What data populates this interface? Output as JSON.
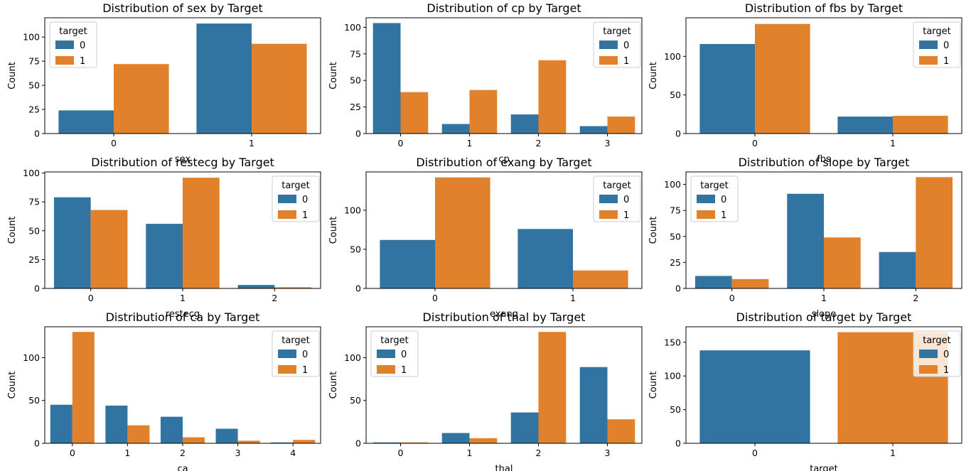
{
  "colors": {
    "class_0": "#3274a1",
    "class_1": "#e1812c"
  },
  "chart_data": [
    {
      "type": "bar",
      "title": "Distribution of sex by Target",
      "xlabel": "sex",
      "ylabel": "Count",
      "categories": [
        "0",
        "1"
      ],
      "ylim": [
        0,
        120
      ],
      "yticks": [
        0,
        25,
        50,
        75,
        100
      ],
      "legend": {
        "title": "target",
        "placement": "top-left",
        "entries": [
          "0",
          "1"
        ]
      },
      "series": [
        {
          "name": "0",
          "values": [
            24,
            114
          ]
        },
        {
          "name": "1",
          "values": [
            72,
            93
          ]
        }
      ]
    },
    {
      "type": "bar",
      "title": "Distribution of cp by Target",
      "xlabel": "cp",
      "ylabel": "Count",
      "categories": [
        "0",
        "1",
        "2",
        "3"
      ],
      "ylim": [
        0,
        109
      ],
      "yticks": [
        0,
        25,
        50,
        75,
        100
      ],
      "legend": {
        "title": "target",
        "placement": "top-right",
        "entries": [
          "0",
          "1"
        ]
      },
      "series": [
        {
          "name": "0",
          "values": [
            104,
            9,
            18,
            7
          ]
        },
        {
          "name": "1",
          "values": [
            39,
            41,
            69,
            16
          ]
        }
      ]
    },
    {
      "type": "bar",
      "title": "Distribution of fbs by Target",
      "xlabel": "fbs",
      "ylabel": "Count",
      "categories": [
        "0",
        "1"
      ],
      "ylim": [
        0,
        150
      ],
      "yticks": [
        0,
        50,
        100
      ],
      "legend": {
        "title": "target",
        "placement": "top-right",
        "entries": [
          "0",
          "1"
        ]
      },
      "series": [
        {
          "name": "0",
          "values": [
            116,
            22
          ]
        },
        {
          "name": "1",
          "values": [
            142,
            23
          ]
        }
      ]
    },
    {
      "type": "bar",
      "title": "Distribution of restecg by Target",
      "xlabel": "restecg",
      "ylabel": "Count",
      "categories": [
        "0",
        "1",
        "2"
      ],
      "ylim": [
        0,
        101
      ],
      "yticks": [
        0,
        25,
        50,
        75,
        100
      ],
      "legend": {
        "title": "target",
        "placement": "top-right",
        "entries": [
          "0",
          "1"
        ]
      },
      "series": [
        {
          "name": "0",
          "values": [
            79,
            56,
            3
          ]
        },
        {
          "name": "1",
          "values": [
            68,
            96,
            1
          ]
        }
      ]
    },
    {
      "type": "bar",
      "title": "Distribution of exang by Target",
      "xlabel": "exang",
      "ylabel": "Count",
      "categories": [
        "0",
        "1"
      ],
      "ylim": [
        0,
        149
      ],
      "yticks": [
        0,
        50,
        100
      ],
      "legend": {
        "title": "target",
        "placement": "top-right",
        "entries": [
          "0",
          "1"
        ]
      },
      "series": [
        {
          "name": "0",
          "values": [
            62,
            76
          ]
        },
        {
          "name": "1",
          "values": [
            142,
            23
          ]
        }
      ]
    },
    {
      "type": "bar",
      "title": "Distribution of slope by Target",
      "xlabel": "slope",
      "ylabel": "Count",
      "categories": [
        "0",
        "1",
        "2"
      ],
      "ylim": [
        0,
        112
      ],
      "yticks": [
        0,
        25,
        50,
        75,
        100
      ],
      "legend": {
        "title": "target",
        "placement": "top-left",
        "entries": [
          "0",
          "1"
        ]
      },
      "series": [
        {
          "name": "0",
          "values": [
            12,
            91,
            35
          ]
        },
        {
          "name": "1",
          "values": [
            9,
            49,
            107
          ]
        }
      ]
    },
    {
      "type": "bar",
      "title": "Distribution of ca by Target",
      "xlabel": "ca",
      "ylabel": "Count",
      "categories": [
        "0",
        "1",
        "2",
        "3",
        "4"
      ],
      "ylim": [
        0,
        136
      ],
      "yticks": [
        0,
        50,
        100
      ],
      "legend": {
        "title": "target",
        "placement": "top-right",
        "entries": [
          "0",
          "1"
        ]
      },
      "series": [
        {
          "name": "0",
          "values": [
            45,
            44,
            31,
            17,
            1
          ]
        },
        {
          "name": "1",
          "values": [
            130,
            21,
            7,
            3,
            4
          ]
        }
      ]
    },
    {
      "type": "bar",
      "title": "Distribution of thal by Target",
      "xlabel": "thal",
      "ylabel": "Count",
      "categories": [
        "0",
        "1",
        "2",
        "3"
      ],
      "ylim": [
        0,
        136
      ],
      "yticks": [
        0,
        50,
        100
      ],
      "legend": {
        "title": "target",
        "placement": "top-left",
        "entries": [
          "0",
          "1"
        ]
      },
      "series": [
        {
          "name": "0",
          "values": [
            1,
            12,
            36,
            89
          ]
        },
        {
          "name": "1",
          "values": [
            1,
            6,
            130,
            28
          ]
        }
      ]
    },
    {
      "type": "bar",
      "title": "Distribution of target by Target",
      "xlabel": "target",
      "ylabel": "Count",
      "categories": [
        "0",
        "1"
      ],
      "ylim": [
        0,
        173
      ],
      "yticks": [
        0,
        50,
        100,
        150
      ],
      "dodge": false,
      "legend": {
        "title": "target",
        "placement": "top-right",
        "entries": [
          "0",
          "1"
        ]
      },
      "series": [
        {
          "name": "0",
          "values": [
            138,
            0
          ]
        },
        {
          "name": "1",
          "values": [
            0,
            165
          ]
        }
      ]
    }
  ]
}
